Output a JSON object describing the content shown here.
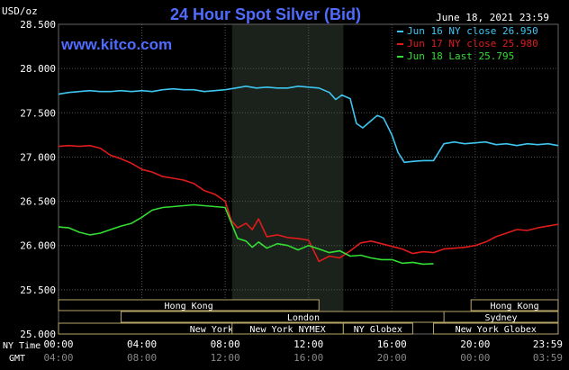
{
  "chart_data": {
    "type": "line",
    "title": "24 Hour Spot Silver (Bid)",
    "watermark": "www.kitco.com",
    "ylabel": "USD/oz",
    "timestamp": "June 18, 2021 23:59",
    "ylim": [
      25.0,
      28.5
    ],
    "y_ticks": [
      "28.500",
      "28.000",
      "27.500",
      "27.000",
      "26.500",
      "26.000",
      "25.500",
      "25.000"
    ],
    "x_label_ny": "NY Time",
    "x_label_gmt": "GMT",
    "x_ticks_ny": [
      "00:00",
      "04:00",
      "08:00",
      "12:00",
      "16:00",
      "20:00",
      "23:59"
    ],
    "x_ticks_gmt": [
      "04:00",
      "08:00",
      "12:00",
      "16:00",
      "20:00",
      "00:00",
      "03:59"
    ],
    "x_hours": [
      0,
      4,
      8,
      12,
      16,
      20,
      23.983
    ],
    "shaded_range_hours": [
      8.33,
      13.67
    ],
    "grid": true,
    "legend_position": "top-right",
    "colors": {
      "background": "#000000",
      "plot_background": "#000000",
      "shaded_background": "#1b221b",
      "grid": "#555555",
      "title": "#4f6cff",
      "watermark": "#4f6cff",
      "axis_text": "#ffffff",
      "session_bar_fill": "#000000",
      "session_bar_border": "#b8a66a",
      "session_text": "#ffffff"
    },
    "series": [
      {
        "name": "Jun 16 NY close 26.950",
        "legend": "Jun 16 NY close 26.950",
        "color": "#3ec6f0",
        "x": [
          0,
          0.5,
          1,
          1.5,
          2,
          2.5,
          3,
          3.5,
          4,
          4.5,
          5,
          5.5,
          6,
          6.5,
          7,
          7.5,
          8,
          8.5,
          9,
          9.5,
          10,
          10.5,
          11,
          11.5,
          12,
          12.5,
          13,
          13.3,
          13.6,
          14,
          14.3,
          14.6,
          15,
          15.3,
          15.6,
          16,
          16.3,
          16.6,
          17,
          17.5,
          18,
          18.5,
          19,
          19.5,
          20,
          20.5,
          21,
          21.5,
          22,
          22.5,
          23,
          23.5,
          23.98
        ],
        "values": [
          27.71,
          27.73,
          27.74,
          27.75,
          27.74,
          27.74,
          27.75,
          27.74,
          27.75,
          27.74,
          27.76,
          27.77,
          27.76,
          27.76,
          27.74,
          27.75,
          27.76,
          27.78,
          27.8,
          27.78,
          27.79,
          27.78,
          27.78,
          27.8,
          27.79,
          27.78,
          27.73,
          27.65,
          27.7,
          27.66,
          27.38,
          27.33,
          27.41,
          27.47,
          27.44,
          27.25,
          27.05,
          26.94,
          26.95,
          26.96,
          26.96,
          27.15,
          27.17,
          27.15,
          27.16,
          27.17,
          27.14,
          27.15,
          27.13,
          27.15,
          27.14,
          27.15,
          27.13
        ]
      },
      {
        "name": "Jun 17 NY close 25.980",
        "legend": "Jun 17 NY close 25.980",
        "color": "#e01b1b",
        "x": [
          0,
          0.5,
          1,
          1.5,
          2,
          2.5,
          3,
          3.5,
          4,
          4.5,
          5,
          5.5,
          6,
          6.5,
          7,
          7.5,
          8,
          8.3,
          8.6,
          9,
          9.3,
          9.6,
          10,
          10.5,
          11,
          11.5,
          12,
          12.5,
          13,
          13.5,
          14,
          14.5,
          15,
          15.5,
          16,
          16.5,
          17,
          17.5,
          18,
          18.5,
          19,
          19.5,
          20,
          20.5,
          21,
          21.5,
          22,
          22.5,
          23,
          23.5,
          23.98
        ],
        "values": [
          27.12,
          27.13,
          27.12,
          27.13,
          27.1,
          27.02,
          26.98,
          26.93,
          26.86,
          26.83,
          26.78,
          26.76,
          26.74,
          26.7,
          26.62,
          26.58,
          26.5,
          26.28,
          26.2,
          26.25,
          26.18,
          26.3,
          26.1,
          26.12,
          26.09,
          26.08,
          26.06,
          25.82,
          25.88,
          25.86,
          25.94,
          26.03,
          26.05,
          26.02,
          25.99,
          25.96,
          25.91,
          25.93,
          25.92,
          25.96,
          25.97,
          25.98,
          26.0,
          26.04,
          26.1,
          26.14,
          26.18,
          26.17,
          26.2,
          26.22,
          26.24
        ]
      },
      {
        "name": "Jun 18 Last 25.795",
        "legend": "Jun 18 Last 25.795",
        "color": "#33dd33",
        "x": [
          0,
          0.5,
          1,
          1.5,
          2,
          2.5,
          3,
          3.5,
          4,
          4.5,
          5,
          5.5,
          6,
          6.5,
          7,
          7.5,
          8,
          8.3,
          8.6,
          9,
          9.3,
          9.6,
          10,
          10.5,
          11,
          11.5,
          12,
          12.5,
          13,
          13.5,
          14,
          14.5,
          15,
          15.5,
          16,
          16.5,
          17,
          17.5,
          18
        ],
        "values": [
          26.21,
          26.2,
          26.15,
          26.12,
          26.14,
          26.18,
          26.22,
          26.25,
          26.32,
          26.4,
          26.43,
          26.44,
          26.45,
          26.46,
          26.45,
          26.44,
          26.43,
          26.25,
          26.08,
          26.05,
          25.98,
          26.04,
          25.97,
          26.02,
          26.0,
          25.95,
          26.0,
          25.96,
          25.92,
          25.94,
          25.88,
          25.89,
          25.86,
          25.84,
          25.84,
          25.8,
          25.81,
          25.79,
          25.795
        ]
      }
    ],
    "sessions_left": [
      {
        "label": "Hong Kong",
        "start": 0,
        "end": 12.5,
        "row": 1
      },
      {
        "label": "London",
        "start": 3,
        "end": 20.5,
        "row": 2
      },
      {
        "label": "New York Globex",
        "start": 0,
        "end": 16.5,
        "row": 3
      }
    ],
    "sessions_bottom": [
      {
        "label": "New York NYMEX",
        "start": 8.33,
        "end": 13.67,
        "row": 3
      },
      {
        "label": "NY Globex",
        "start": 13.67,
        "end": 17.0,
        "row": 3
      }
    ],
    "sessions_right": [
      {
        "label": "Hong Kong",
        "start": 19.8,
        "end": 23.98,
        "row": 1
      },
      {
        "label": "Sydney",
        "start": 18.5,
        "end": 23.98,
        "row": 2
      },
      {
        "label": "New York Globex",
        "start": 18.0,
        "end": 23.98,
        "row": 3
      }
    ]
  }
}
